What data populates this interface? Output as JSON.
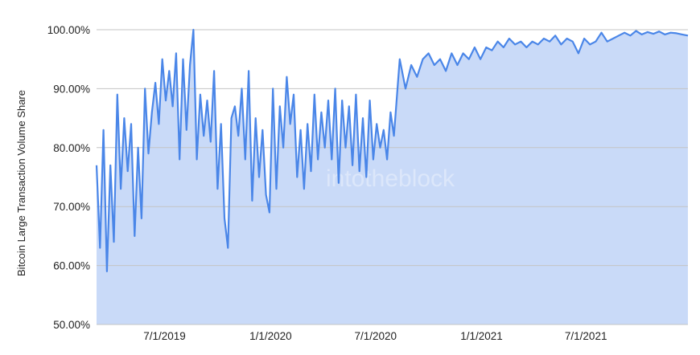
{
  "chart_data": {
    "type": "area",
    "title": "",
    "xlabel": "",
    "ylabel": "Bitcoin Large Transaction Volume Share",
    "ylim": [
      50,
      100
    ],
    "xlim": [
      "2019-03-05",
      "2021-12-25"
    ],
    "y_ticks": [
      "50.00%",
      "60.00%",
      "70.00%",
      "80.00%",
      "90.00%",
      "100.00%"
    ],
    "y_tick_values": [
      50,
      60,
      70,
      80,
      90,
      100
    ],
    "x_ticks": [
      "7/1/2019",
      "1/1/2020",
      "7/1/2020",
      "1/1/2021",
      "7/1/2021"
    ],
    "x_tick_dates": [
      "2019-07-01",
      "2020-01-01",
      "2020-07-01",
      "2021-01-01",
      "2021-07-01"
    ],
    "grid": true,
    "legend": "none",
    "colors": {
      "line": "#4a86e8",
      "fill": "#c9daf8",
      "grid": "#c4c4c4"
    },
    "watermark": "intotheblock",
    "x": [
      "2019-03-05",
      "2019-03-11",
      "2019-03-17",
      "2019-03-23",
      "2019-03-29",
      "2019-04-04",
      "2019-04-10",
      "2019-04-16",
      "2019-04-22",
      "2019-04-28",
      "2019-05-04",
      "2019-05-10",
      "2019-05-16",
      "2019-05-22",
      "2019-05-28",
      "2019-06-03",
      "2019-06-09",
      "2019-06-15",
      "2019-06-21",
      "2019-06-27",
      "2019-07-03",
      "2019-07-09",
      "2019-07-15",
      "2019-07-21",
      "2019-07-27",
      "2019-08-02",
      "2019-08-08",
      "2019-08-14",
      "2019-08-20",
      "2019-08-26",
      "2019-09-01",
      "2019-09-07",
      "2019-09-13",
      "2019-09-19",
      "2019-09-25",
      "2019-10-01",
      "2019-10-07",
      "2019-10-13",
      "2019-10-19",
      "2019-10-25",
      "2019-10-31",
      "2019-11-06",
      "2019-11-12",
      "2019-11-18",
      "2019-11-24",
      "2019-11-30",
      "2019-12-06",
      "2019-12-12",
      "2019-12-18",
      "2019-12-24",
      "2019-12-30",
      "2020-01-05",
      "2020-01-11",
      "2020-01-17",
      "2020-01-23",
      "2020-01-29",
      "2020-02-04",
      "2020-02-10",
      "2020-02-16",
      "2020-02-22",
      "2020-02-28",
      "2020-03-05",
      "2020-03-11",
      "2020-03-17",
      "2020-03-23",
      "2020-03-29",
      "2020-04-04",
      "2020-04-10",
      "2020-04-16",
      "2020-04-22",
      "2020-04-28",
      "2020-05-04",
      "2020-05-10",
      "2020-05-16",
      "2020-05-22",
      "2020-05-28",
      "2020-06-03",
      "2020-06-09",
      "2020-06-15",
      "2020-06-21",
      "2020-06-27",
      "2020-07-03",
      "2020-07-09",
      "2020-07-15",
      "2020-07-21",
      "2020-07-27",
      "2020-08-02",
      "2020-08-12",
      "2020-08-22",
      "2020-09-01",
      "2020-09-11",
      "2020-09-21",
      "2020-10-01",
      "2020-10-11",
      "2020-10-21",
      "2020-10-31",
      "2020-11-10",
      "2020-11-20",
      "2020-11-30",
      "2020-12-10",
      "2020-12-20",
      "2020-12-30",
      "2021-01-09",
      "2021-01-19",
      "2021-01-29",
      "2021-02-08",
      "2021-02-18",
      "2021-02-28",
      "2021-03-10",
      "2021-03-20",
      "2021-03-30",
      "2021-04-09",
      "2021-04-19",
      "2021-04-29",
      "2021-05-09",
      "2021-05-19",
      "2021-05-29",
      "2021-06-08",
      "2021-06-18",
      "2021-06-28",
      "2021-07-08",
      "2021-07-18",
      "2021-07-28",
      "2021-08-07",
      "2021-08-17",
      "2021-08-27",
      "2021-09-06",
      "2021-09-16",
      "2021-09-26",
      "2021-10-06",
      "2021-10-16",
      "2021-10-26",
      "2021-11-05",
      "2021-11-15",
      "2021-11-25",
      "2021-12-05",
      "2021-12-15",
      "2021-12-25"
    ],
    "y": [
      77,
      63,
      83,
      59,
      77,
      64,
      89,
      73,
      85,
      76,
      84,
      65,
      80,
      68,
      90,
      79,
      86,
      91,
      84,
      95,
      88,
      93,
      87,
      96,
      78,
      95,
      83,
      94,
      100,
      78,
      89,
      82,
      88,
      81,
      93,
      73,
      84,
      68,
      63,
      85,
      87,
      82,
      90,
      78,
      93,
      71,
      85,
      75,
      83,
      72,
      69,
      90,
      73,
      87,
      80,
      92,
      84,
      89,
      75,
      83,
      73,
      84,
      76,
      89,
      78,
      86,
      80,
      88,
      78,
      90,
      74,
      88,
      80,
      87,
      77,
      89,
      76,
      85,
      75,
      88,
      78,
      84,
      80,
      83,
      78,
      86,
      82,
      95,
      90,
      94,
      92,
      95,
      96,
      94,
      95,
      93,
      96,
      94,
      96,
      95,
      97,
      95,
      97,
      96.5,
      98,
      97,
      98.5,
      97.5,
      98,
      97,
      98,
      97.5,
      98.5,
      98,
      99,
      97.5,
      98.5,
      98,
      96,
      98.5,
      97.5,
      98,
      99.5,
      98,
      98.5,
      99,
      99.5,
      99,
      99.8,
      99.2,
      99.6,
      99.3,
      99.7,
      99.2,
      99.5,
      99.4,
      99.2,
      99
    ]
  }
}
